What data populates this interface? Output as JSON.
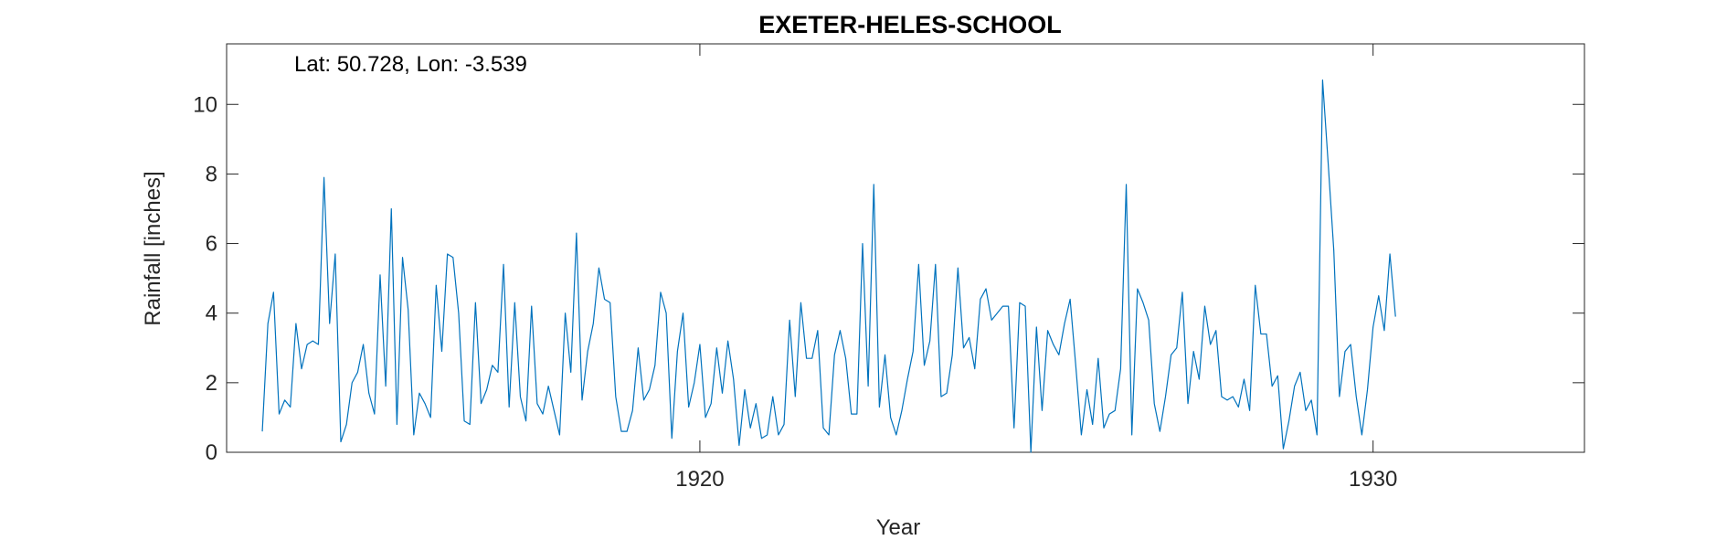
{
  "chart_data": {
    "type": "line",
    "title": "EXETER-HELES-SCHOOL",
    "xlabel": "Year",
    "ylabel": "Rainfall [inches]",
    "annotation": "Lat: 50.728, Lon: -3.539",
    "xlim": [
      1912.97,
      1933.14
    ],
    "ylim": [
      0,
      11.74
    ],
    "x_ticks": [
      1920,
      1930
    ],
    "y_ticks": [
      0,
      2,
      4,
      6,
      8,
      10
    ],
    "grid": false,
    "series": [
      {
        "x_start": 1913.5,
        "x_step_months": 1,
        "values": [
          0.6,
          3.7,
          4.6,
          1.1,
          1.5,
          1.3,
          3.7,
          2.4,
          3.1,
          3.2,
          3.1,
          7.9,
          3.7,
          5.7,
          0.3,
          0.8,
          2.0,
          2.3,
          3.1,
          1.7,
          1.1,
          5.1,
          1.9,
          7.0,
          0.8,
          5.6,
          4.1,
          0.5,
          1.7,
          1.4,
          1.0,
          4.8,
          2.9,
          5.7,
          5.6,
          4.0,
          0.9,
          0.8,
          4.3,
          1.4,
          1.8,
          2.5,
          2.3,
          5.4,
          1.3,
          4.3,
          1.6,
          0.9,
          4.2,
          1.4,
          1.1,
          1.9,
          1.2,
          0.5,
          4.0,
          2.3,
          6.3,
          1.5,
          2.9,
          3.7,
          5.3,
          4.4,
          4.3,
          1.6,
          0.6,
          0.6,
          1.2,
          3.0,
          1.5,
          1.8,
          2.5,
          4.6,
          4.0,
          0.4,
          2.9,
          4.0,
          1.3,
          2.0,
          3.1,
          1.0,
          1.4,
          3.0,
          1.7,
          3.2,
          2.1,
          0.2,
          1.8,
          0.7,
          1.4,
          0.4,
          0.5,
          1.6,
          0.5,
          0.8,
          3.8,
          1.6,
          4.3,
          2.7,
          2.7,
          3.5,
          0.7,
          0.5,
          2.8,
          3.5,
          2.7,
          1.1,
          1.1,
          6.0,
          1.9,
          7.7,
          1.3,
          2.8,
          1.0,
          0.5,
          1.2,
          2.1,
          2.9,
          5.4,
          2.5,
          3.2,
          5.4,
          1.6,
          1.7,
          2.8,
          5.3,
          3.0,
          3.3,
          2.4,
          4.4,
          4.7,
          3.8,
          4.0,
          4.2,
          4.2,
          0.7,
          4.3,
          4.2,
          0.0,
          3.6,
          1.2,
          3.5,
          3.1,
          2.8,
          3.7,
          4.4,
          2.5,
          0.5,
          1.8,
          0.8,
          2.7,
          0.7,
          1.1,
          1.2,
          2.4,
          7.7,
          0.5,
          4.7,
          4.3,
          3.8,
          1.4,
          0.6,
          1.6,
          2.8,
          3.0,
          4.6,
          1.4,
          2.9,
          2.1,
          4.2,
          3.1,
          3.5,
          1.6,
          1.5,
          1.6,
          1.3,
          2.1,
          1.2,
          4.8,
          3.4,
          3.4,
          1.9,
          2.2,
          0.1,
          0.9,
          1.9,
          2.3,
          1.2,
          1.5,
          0.5,
          10.7,
          8.3,
          5.8,
          1.6,
          2.9,
          3.1,
          1.6,
          0.5,
          1.8,
          3.6,
          4.5,
          3.5,
          5.7,
          3.9
        ]
      }
    ],
    "color": "#0072BD"
  }
}
